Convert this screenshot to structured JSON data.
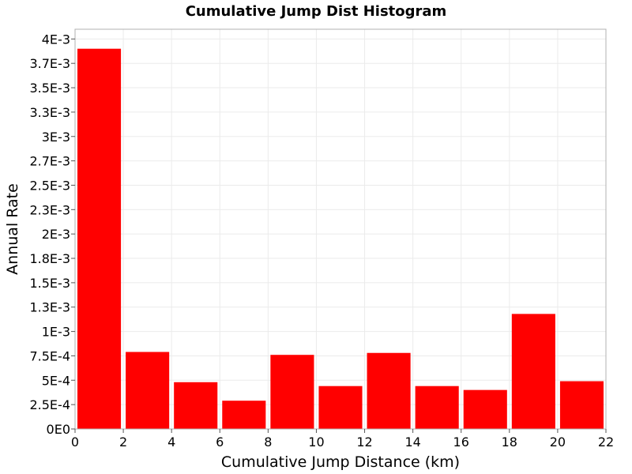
{
  "chart_data": {
    "type": "bar",
    "title": "Cumulative Jump Dist Histogram",
    "xlabel": "Cumulative Jump Distance (km)",
    "ylabel": "Annual Rate",
    "xlim": [
      0,
      22
    ],
    "ylim": [
      0,
      0.0041
    ],
    "x_ticks": [
      0,
      2,
      4,
      6,
      8,
      10,
      12,
      14,
      16,
      18,
      20,
      22
    ],
    "x_tick_labels": [
      "0",
      "2",
      "4",
      "6",
      "8",
      "10",
      "12",
      "14",
      "16",
      "18",
      "20",
      "22"
    ],
    "y_ticks": [
      0,
      0.00025,
      0.0005,
      0.00075,
      0.001,
      0.00125,
      0.0015,
      0.00175,
      0.002,
      0.00225,
      0.0025,
      0.00275,
      0.003,
      0.00325,
      0.0035,
      0.00375,
      0.004
    ],
    "y_tick_labels": [
      "0E0",
      "2.5E-4",
      "5E-4",
      "7.5E-4",
      "1E-3",
      "1.3E-3",
      "1.5E-3",
      "1.8E-3",
      "2E-3",
      "2.3E-3",
      "2.5E-3",
      "2.7E-3",
      "3E-3",
      "3.3E-3",
      "3.5E-3",
      "3.7E-3",
      "4E-3"
    ],
    "grid": true,
    "bar_color": "#ff0000",
    "bins": [
      {
        "x0": 0,
        "x1": 2,
        "value": 0.0039
      },
      {
        "x0": 2,
        "x1": 4,
        "value": 0.00079
      },
      {
        "x0": 4,
        "x1": 6,
        "value": 0.00048
      },
      {
        "x0": 6,
        "x1": 8,
        "value": 0.00029
      },
      {
        "x0": 8,
        "x1": 10,
        "value": 0.00076
      },
      {
        "x0": 10,
        "x1": 12,
        "value": 0.00044
      },
      {
        "x0": 12,
        "x1": 14,
        "value": 0.00078
      },
      {
        "x0": 14,
        "x1": 16,
        "value": 0.00044
      },
      {
        "x0": 16,
        "x1": 18,
        "value": 0.0004
      },
      {
        "x0": 18,
        "x1": 20,
        "value": 0.00118
      },
      {
        "x0": 20,
        "x1": 22,
        "value": 0.00049
      }
    ]
  }
}
